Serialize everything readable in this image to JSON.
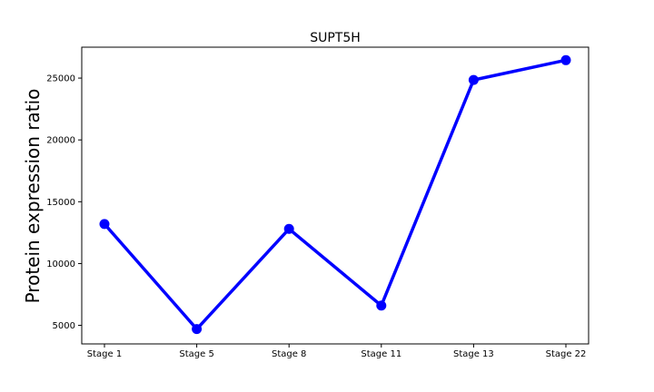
{
  "chart_data": {
    "type": "line",
    "title": "SUPT5H",
    "xlabel": "",
    "ylabel": "Protein expression ratio",
    "categories": [
      "Stage 1",
      "Stage 5",
      "Stage 8",
      "Stage 11",
      "Stage 13",
      "Stage 22"
    ],
    "series": [
      {
        "values": [
          13200,
          4700,
          12800,
          6600,
          24850,
          26450
        ],
        "color": "#0000ff"
      }
    ],
    "yticks": [
      5000,
      10000,
      15000,
      20000,
      25000
    ],
    "ylim": [
      3500,
      27500
    ],
    "grid": false,
    "legend": "none"
  }
}
